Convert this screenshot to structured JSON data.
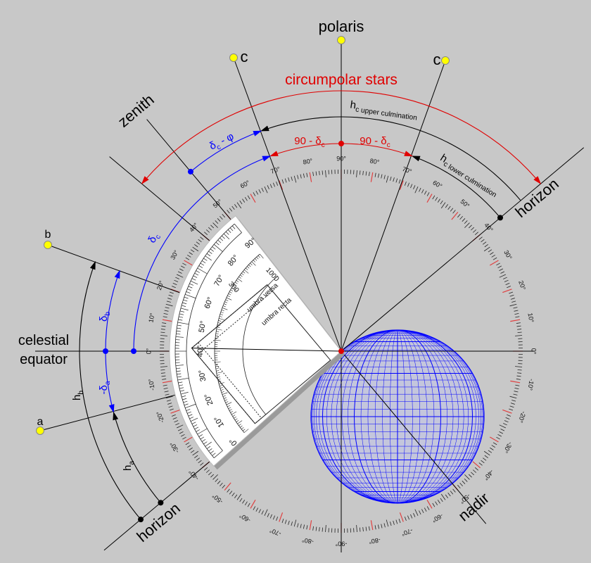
{
  "labels": {
    "polaris": "polaris",
    "c_left": "c",
    "c_right": "c",
    "circumpolar_stars": "circumpolar stars",
    "zenith": "zenith",
    "horizon_right": "horizon",
    "horizon_left": "horizon",
    "nadir": "nadir",
    "b": "b",
    "a": "a",
    "celestial_equator": [
      "celestial",
      "equator"
    ]
  },
  "annotations": {
    "hc_upper": [
      "h",
      "c upper culmination"
    ],
    "hc_lower": [
      "h",
      "c lower culmination"
    ],
    "ninety_minus_dc_left": [
      "90 - δ",
      "c"
    ],
    "ninety_minus_dc_right": [
      "90 - δ",
      "c"
    ],
    "dc_minus_phi": [
      "δ",
      "c",
      " - φ"
    ],
    "dc": [
      "δ",
      "c"
    ],
    "db": [
      "δ",
      "b"
    ],
    "minus_da": [
      "-δ",
      "a"
    ],
    "hb": [
      "h",
      "b"
    ],
    "ha": [
      "h",
      "a"
    ]
  },
  "scale_labels": [
    "0°",
    "10°",
    "20°",
    "30°",
    "40°",
    "50°",
    "60°",
    "70°",
    "80°",
    "90°",
    "80°",
    "70°",
    "60°",
    "50°",
    "40°",
    "30°",
    "20°",
    "10°",
    "0°",
    "-10°",
    "-20°",
    "-30°",
    "-40°",
    "-50°",
    "-60°",
    "-70°",
    "-80°",
    "-90°",
    "-80°",
    "-70°",
    "-60°",
    "-50°",
    "-40°",
    "-30°",
    "-20°",
    "-10°"
  ],
  "protractor": {
    "degrees": [
      "0°",
      "10°",
      "20°",
      "30°",
      "40°",
      "50°",
      "60°",
      "70°",
      "80°",
      "90°"
    ],
    "texts": [
      "1000",
      "300",
      "umbra recta",
      "umbra versa"
    ]
  }
}
